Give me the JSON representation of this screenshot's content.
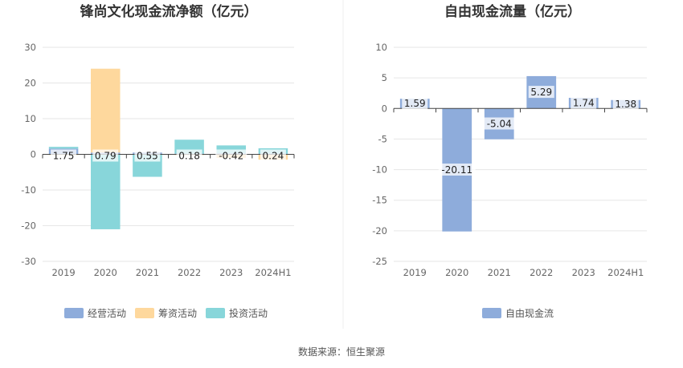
{
  "footer": {
    "source": "数据来源：恒生聚源"
  },
  "colors": {
    "operating": "#8eacdb",
    "financing": "#fed89d",
    "investing": "#88d6da",
    "fcf": "#8eacdb",
    "grid": "#e6e6e6",
    "axis": "#444444"
  },
  "chart_data": [
    {
      "type": "bar",
      "stacked": true,
      "title": "锋尚文化现金流净额（亿元）",
      "categories": [
        "2019",
        "2020",
        "2021",
        "2022",
        "2023",
        "2024H1"
      ],
      "ylim": [
        -30,
        30
      ],
      "yticks": [
        30,
        20,
        10,
        0,
        -10,
        -20,
        -30
      ],
      "series": [
        {
          "name": "经营活动",
          "values": [
            1.6,
            0.5,
            0.5,
            0.2,
            0.3,
            0.2
          ]
        },
        {
          "name": "筹资活动",
          "values": [
            -0.2,
            23.5,
            -0.1,
            -0.2,
            -1.0,
            -1.5
          ]
        },
        {
          "name": "投资活动",
          "values": [
            0.5,
            -21.0,
            -6.2,
            3.9,
            2.2,
            1.5
          ]
        }
      ],
      "data_labels": [
        "1.75",
        "0.79",
        "0.55",
        "0.18",
        "-0.42",
        "0.24"
      ],
      "legend": "bottom",
      "grid": true
    },
    {
      "type": "bar",
      "title": "自由现金流量（亿元）",
      "categories": [
        "2019",
        "2020",
        "2021",
        "2022",
        "2023",
        "2024H1"
      ],
      "ylim": [
        -25,
        10
      ],
      "yticks": [
        10,
        5,
        0,
        -5,
        -10,
        -15,
        -20,
        -25
      ],
      "series": [
        {
          "name": "自由现金流",
          "values": [
            1.59,
            -20.11,
            -5.04,
            5.29,
            1.74,
            1.38
          ]
        }
      ],
      "data_labels": [
        "1.59",
        "-20.11",
        "-5.04",
        "5.29",
        "1.74",
        "1.38"
      ],
      "legend": "bottom",
      "grid": true
    }
  ]
}
